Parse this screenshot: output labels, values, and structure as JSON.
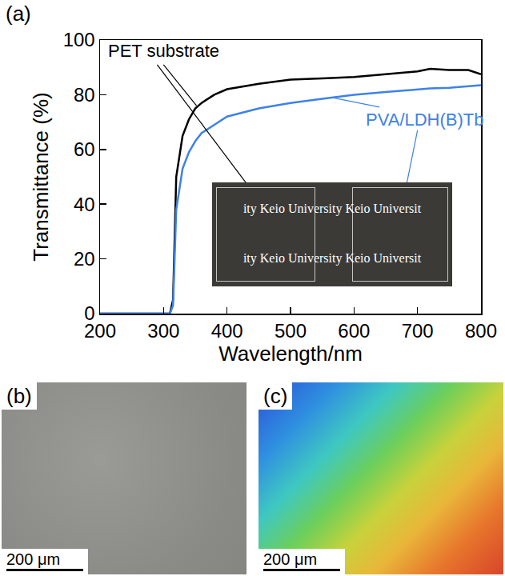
{
  "chart_data": {
    "type": "line",
    "panel_label": "(a)",
    "x_label": "Wavelength/nm",
    "y_label": "Transmittance (%)",
    "xlim": [
      200,
      800
    ],
    "ylim": [
      0,
      100
    ],
    "xticks": [
      200,
      300,
      400,
      500,
      600,
      700,
      800
    ],
    "yticks": [
      0,
      20,
      40,
      60,
      80,
      100
    ],
    "grid": false,
    "x": [
      200,
      250,
      300,
      310,
      315,
      320,
      330,
      340,
      350,
      360,
      380,
      400,
      450,
      500,
      550,
      600,
      650,
      700,
      720,
      750,
      780,
      800
    ],
    "series": [
      {
        "name": "PET substrate",
        "color": "#000000",
        "values": [
          0,
          0,
          0,
          0,
          5,
          50,
          65,
          71,
          75,
          77,
          80,
          82,
          84,
          85.5,
          86,
          86.5,
          87.5,
          88.5,
          89.5,
          89,
          89,
          87.5
        ]
      },
      {
        "name": "PVA/LDH(B)Tb",
        "color": "#3d82e8",
        "values": [
          0,
          0,
          0,
          0,
          3,
          38,
          53,
          59,
          63,
          66,
          69,
          72,
          75,
          77,
          78.5,
          80,
          81,
          82,
          82.3,
          82.5,
          83,
          83.5
        ]
      }
    ],
    "inset_lines": [
      "ity Keio University Keio Universit",
      "ity Keio University Keio Universit"
    ]
  },
  "panels": [
    {
      "label": "(b)",
      "scale_bar": "200 μm"
    },
    {
      "label": "(c)",
      "scale_bar": "200 μm"
    }
  ]
}
